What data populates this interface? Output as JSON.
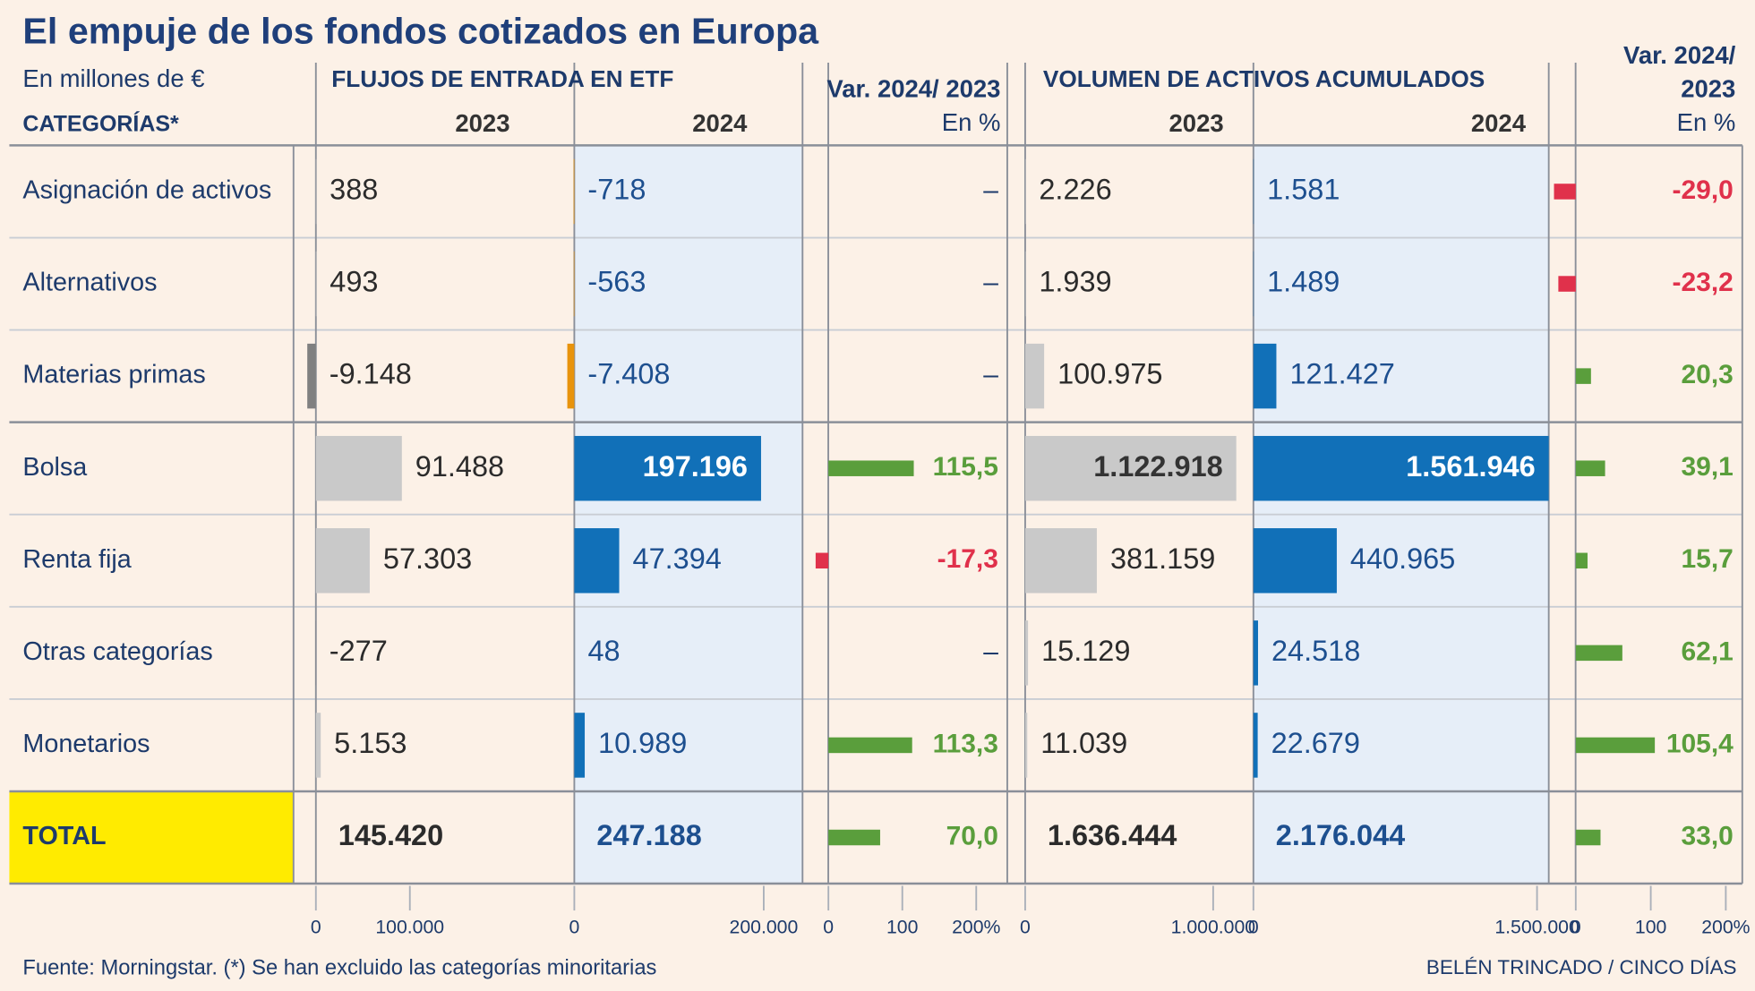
{
  "chart_data": {
    "type": "bar-table",
    "title": "El empuje de los fondos cotizados en Europa",
    "subtitle": "En millones de €",
    "category_header": "CATEGORÍAS*",
    "categories": [
      "Asignación de activos",
      "Alternativos",
      "Materias primas",
      "Bolsa",
      "Renta fija",
      "Otras categorías",
      "Monetarios",
      "TOTAL"
    ],
    "total_color": "#ffeb00",
    "source": "Fuente: Morningstar. (*) Se han excluido las categorías minoritarias",
    "credit": "BELÉN TRINCADO / CINCO DÍAS",
    "panels": [
      {
        "title": "FLUJOS DE ENTRADA EN ETF",
        "columns": [
          {
            "kind": "value",
            "header": [
              "2023"
            ],
            "color": "#c9c9c9",
            "negative_color": "#808080",
            "label_color": "#2b2b2b",
            "inside_label_color": "#333333",
            "values": [
              388,
              493,
              -9148,
              91488,
              57303,
              -277,
              5153,
              145420
            ],
            "value_labels": [
              "388",
              "493",
              "-9.148",
              "91.488",
              "57.303",
              "-277",
              "5.153",
              "145.420"
            ],
            "xlim": [
              0,
              275000
            ],
            "xticks": [
              0,
              {
                "value": 100000,
                "label": "100.000"
              }
            ]
          },
          {
            "kind": "value",
            "header": [
              "2024"
            ],
            "color": "#1170b8",
            "negative_color": "#e8930c",
            "label_color": "#1d4f8f",
            "inside_label_color": "#ffffff",
            "background": "#e6eef8",
            "values": [
              -718,
              -563,
              -7408,
              197196,
              47394,
              48,
              10989,
              247188
            ],
            "value_labels": [
              "-718",
              "-563",
              "-7.408",
              "197.196",
              "47.394",
              "48",
              "10.989",
              "247.188"
            ],
            "xlim": [
              0,
              241000
            ],
            "xticks": [
              0,
              {
                "value": 200000,
                "label": "200.000"
              }
            ]
          },
          {
            "kind": "change",
            "header": [
              "Var. 2024/ 2023",
              "En %"
            ],
            "color": "#5a9e3c",
            "negative_color": "#e0314b",
            "label_color": "#1d3a6b",
            "values": [
              null,
              null,
              null,
              115.5,
              -17.3,
              null,
              113.3,
              70.0
            ],
            "value_labels": [
              "–",
              "–",
              "–",
              "115,5",
              "-17,3",
              "–",
              "113,3",
              "70,0"
            ],
            "xlim": [
              -35,
              242
            ],
            "xticks": [
              0,
              100,
              {
                "value": 200,
                "label": "200%"
              }
            ]
          }
        ]
      },
      {
        "title": "VOLUMEN DE ACTIVOS ACUMULADOS",
        "columns": [
          {
            "kind": "value",
            "header": [
              "2023"
            ],
            "color": "#c9c9c9",
            "negative_color": "#808080",
            "label_color": "#2b2b2b",
            "inside_label_color": "#333333",
            "values": [
              2226,
              1939,
              100975,
              1122918,
              381159,
              15129,
              11039,
              1636444
            ],
            "value_labels": [
              "2.226",
              "1.939",
              "100.975",
              "1.122.918",
              "381.159",
              "15.129",
              "11.039",
              "1.636.444"
            ],
            "xlim": [
              0,
              1214000
            ],
            "xticks": [
              0,
              {
                "value": 1000000,
                "label": "1.000.000"
              }
            ]
          },
          {
            "kind": "value",
            "header": [
              "2024"
            ],
            "color": "#1170b8",
            "negative_color": "#e8930c",
            "label_color": "#1d4f8f",
            "inside_label_color": "#ffffff",
            "background": "#e6eef8",
            "values": [
              1581,
              1489,
              121427,
              1561946,
              440965,
              24518,
              22679,
              2176044
            ],
            "value_labels": [
              "1.581",
              "1.489",
              "121.427",
              "1.561.946",
              "440.965",
              "24.518",
              "22.679",
              "2.176.044"
            ],
            "xlim": [
              0,
              1562000
            ],
            "xticks": [
              0,
              {
                "value": 1500000,
                "label": "1.500.000"
              }
            ]
          },
          {
            "kind": "change",
            "header": [
              "Var. 2024/",
              "2023",
              "En %"
            ],
            "color": "#5a9e3c",
            "negative_color": "#e0314b",
            "label_color": "#1d3a6b",
            "values": [
              -29.0,
              -23.2,
              20.3,
              39.1,
              15.7,
              62.1,
              105.4,
              33.0
            ],
            "value_labels": [
              "-29,0",
              "-23,2",
              "20,3",
              "39,1",
              "15,7",
              "62,1",
              "105,4",
              "33,0"
            ],
            "xlim": [
              -36,
              222
            ],
            "xticks": [
              0,
              100,
              {
                "value": 200,
                "label": "200%"
              }
            ]
          }
        ]
      }
    ]
  }
}
